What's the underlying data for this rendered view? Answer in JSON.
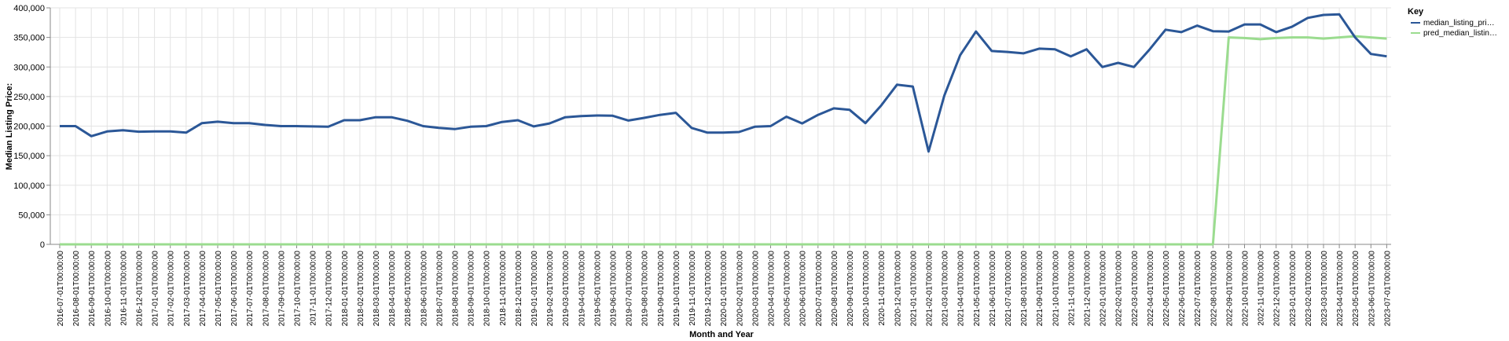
{
  "chart_data": {
    "type": "line",
    "xlabel": "Month and Year",
    "ylabel": "Median Listing Price:",
    "ylim": [
      0,
      400000
    ],
    "y_ticks": [
      "0",
      "50,000",
      "100,000",
      "150,000",
      "200,000",
      "250,000",
      "300,000",
      "350,000",
      "400,000"
    ],
    "grid": true,
    "legend_position": "right",
    "legend_title": "Key",
    "categories": [
      "2016-07-01T00:00:00",
      "2016-08-01T00:00:00",
      "2016-09-01T00:00:00",
      "2016-10-01T00:00:00",
      "2016-11-01T00:00:00",
      "2016-12-01T00:00:00",
      "2017-01-01T00:00:00",
      "2017-02-01T00:00:00",
      "2017-03-01T00:00:00",
      "2017-04-01T00:00:00",
      "2017-05-01T00:00:00",
      "2017-06-01T00:00:00",
      "2017-07-01T00:00:00",
      "2017-08-01T00:00:00",
      "2017-09-01T00:00:00",
      "2017-10-01T00:00:00",
      "2017-11-01T00:00:00",
      "2017-12-01T00:00:00",
      "2018-01-01T00:00:00",
      "2018-02-01T00:00:00",
      "2018-03-01T00:00:00",
      "2018-04-01T00:00:00",
      "2018-05-01T00:00:00",
      "2018-06-01T00:00:00",
      "2018-07-01T00:00:00",
      "2018-08-01T00:00:00",
      "2018-09-01T00:00:00",
      "2018-10-01T00:00:00",
      "2018-11-01T00:00:00",
      "2018-12-01T00:00:00",
      "2019-01-01T00:00:00",
      "2019-02-01T00:00:00",
      "2019-03-01T00:00:00",
      "2019-04-01T00:00:00",
      "2019-05-01T00:00:00",
      "2019-06-01T00:00:00",
      "2019-07-01T00:00:00",
      "2019-08-01T00:00:00",
      "2019-09-01T00:00:00",
      "2019-10-01T00:00:00",
      "2019-11-01T00:00:00",
      "2019-12-01T00:00:00",
      "2020-01-01T00:00:00",
      "2020-02-01T00:00:00",
      "2020-03-01T00:00:00",
      "2020-04-01T00:00:00",
      "2020-05-01T00:00:00",
      "2020-06-01T00:00:00",
      "2020-07-01T00:00:00",
      "2020-08-01T00:00:00",
      "2020-09-01T00:00:00",
      "2020-10-01T00:00:00",
      "2020-11-01T00:00:00",
      "2020-12-01T00:00:00",
      "2021-01-01T00:00:00",
      "2021-02-01T00:00:00",
      "2021-03-01T00:00:00",
      "2021-04-01T00:00:00",
      "2021-05-01T00:00:00",
      "2021-06-01T00:00:00",
      "2021-07-01T00:00:00",
      "2021-08-01T00:00:00",
      "2021-09-01T00:00:00",
      "2021-10-01T00:00:00",
      "2021-11-01T00:00:00",
      "2021-12-01T00:00:00",
      "2022-01-01T00:00:00",
      "2022-02-01T00:00:00",
      "2022-03-01T00:00:00",
      "2022-04-01T00:00:00",
      "2022-05-01T00:00:00",
      "2022-06-01T00:00:00",
      "2022-07-01T00:00:00",
      "2022-08-01T00:00:00",
      "2022-09-01T00:00:00",
      "2022-10-01T00:00:00",
      "2022-11-01T00:00:00",
      "2022-12-01T00:00:00",
      "2023-01-01T00:00:00",
      "2023-02-01T00:00:00",
      "2023-03-01T00:00:00",
      "2023-04-01T00:00:00",
      "2023-05-01T00:00:00",
      "2023-06-01T00:00:00",
      "2023-07-01T00:00:00"
    ],
    "series": [
      {
        "name": "median_listing_pri…",
        "color": "#2b5797",
        "values": [
          200000,
          200000,
          183000,
          191000,
          193000,
          190500,
          191000,
          191000,
          189000,
          205000,
          207500,
          205000,
          205000,
          202000,
          200000,
          200000,
          199500,
          199000,
          210000,
          210000,
          215000,
          215000,
          209000,
          200000,
          197000,
          195000,
          199000,
          200000,
          207000,
          210000,
          199500,
          204500,
          215000,
          217000,
          218000,
          217500,
          209500,
          214000,
          219000,
          222500,
          197000,
          189000,
          189000,
          190000,
          199000,
          200000,
          216000,
          204500,
          219000,
          230000,
          227500,
          205000,
          235000,
          270000,
          267000,
          157000,
          252000,
          320000,
          360000,
          327000,
          325500,
          323000,
          331000,
          330000,
          318000,
          330000,
          300000,
          307000,
          300000,
          330000,
          363000,
          359000,
          370000,
          360500,
          360000,
          372000,
          372000,
          359000,
          368000,
          383000,
          388000,
          389000,
          350000,
          322000,
          318000
        ]
      },
      {
        "name": "pred_median_listin…",
        "color": "#9bdc8f",
        "values": [
          0,
          0,
          0,
          0,
          0,
          0,
          0,
          0,
          0,
          0,
          0,
          0,
          0,
          0,
          0,
          0,
          0,
          0,
          0,
          0,
          0,
          0,
          0,
          0,
          0,
          0,
          0,
          0,
          0,
          0,
          0,
          0,
          0,
          0,
          0,
          0,
          0,
          0,
          0,
          0,
          0,
          0,
          0,
          0,
          0,
          0,
          0,
          0,
          0,
          0,
          0,
          0,
          0,
          0,
          0,
          0,
          0,
          0,
          0,
          0,
          0,
          0,
          0,
          0,
          0,
          0,
          0,
          0,
          0,
          0,
          0,
          0,
          0,
          0,
          350000,
          349000,
          347000,
          349000,
          350000,
          350000,
          348000,
          350000,
          352000,
          350000,
          348000
        ]
      }
    ]
  }
}
